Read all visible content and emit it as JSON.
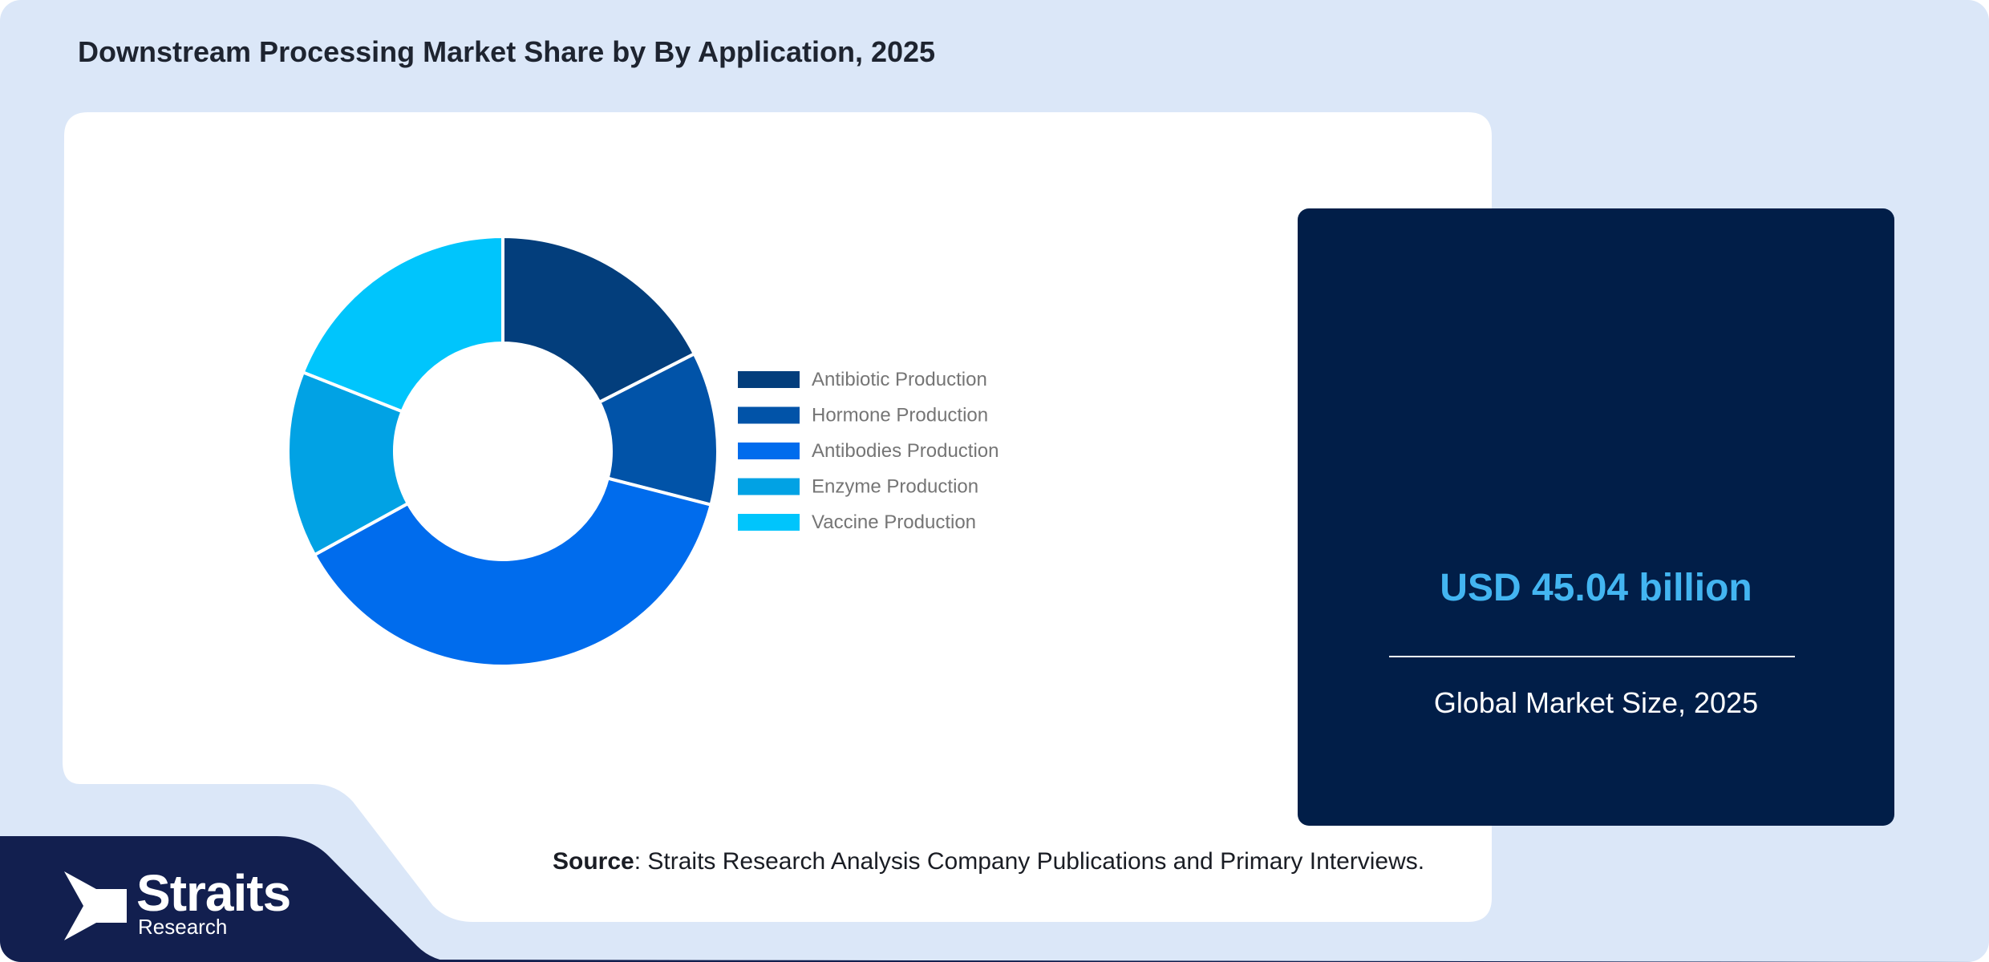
{
  "title": "Downstream Processing Market Share by By Application, 2025",
  "chart_data": {
    "type": "pie",
    "subtype": "donut",
    "categories": [
      "Antibiotic Production",
      "Hormone Production",
      "Antibodies Production",
      "Enzyme Production",
      "Vaccine Production"
    ],
    "values": [
      17.5,
      11.5,
      38.0,
      14.0,
      19.0
    ],
    "colors": [
      "#033e7c",
      "#0153a8",
      "#006ced",
      "#01a2e4",
      "#00c5fc"
    ],
    "legend_position": "right"
  },
  "stat_card": {
    "value": "USD 45.04 billion",
    "label": "Global Market Size, 2025",
    "value_color": "#43b5f1",
    "background": "#011e48"
  },
  "source": {
    "prefix": "Source",
    "text": ": Straits Research Analysis Company Publications and Primary Interviews."
  },
  "logo": {
    "name": "Straits",
    "sub": "Research",
    "icon": "straits-chevron-icon"
  },
  "colors": {
    "page_background": "#dbe7f8",
    "panel": "#ffffff",
    "footer_navy": "#121f4f"
  }
}
